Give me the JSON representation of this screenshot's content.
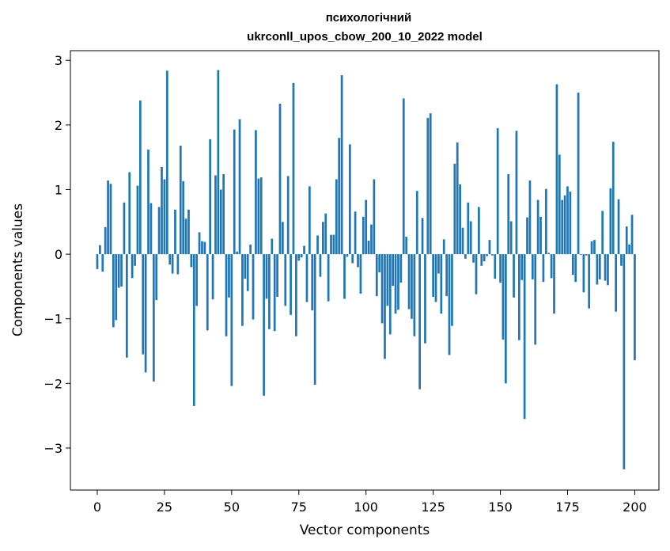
{
  "chart_data": {
    "type": "bar",
    "title": "психологічний",
    "subtitle": "ukrconll_upos_cbow_200_10_2022 model",
    "xlabel": "Vector components",
    "ylabel": "Components values",
    "xlim": [
      -10,
      209
    ],
    "ylim": [
      -3.65,
      3.15
    ],
    "xticks": [
      0,
      25,
      50,
      75,
      100,
      125,
      150,
      175,
      200
    ],
    "yticks": [
      -3,
      -2,
      -1,
      0,
      1,
      2,
      3
    ],
    "xtick_labels": [
      "0",
      "25",
      "50",
      "75",
      "100",
      "125",
      "150",
      "175",
      "200"
    ],
    "ytick_labels": [
      "−3",
      "−2",
      "−1",
      "0",
      "1",
      "2",
      "3"
    ],
    "grid": false,
    "bar_color": "#1f77b4",
    "values": [
      -0.23,
      0.14,
      -0.27,
      0.42,
      1.14,
      1.09,
      -1.13,
      -1.02,
      -0.52,
      -0.5,
      0.8,
      -1.6,
      1.27,
      -0.37,
      -0.18,
      1.06,
      2.38,
      -1.55,
      -1.83,
      1.62,
      0.79,
      -1.97,
      -0.71,
      0.73,
      1.35,
      1.16,
      2.84,
      -0.16,
      -0.3,
      0.69,
      -0.31,
      1.68,
      1.13,
      0.55,
      0.69,
      -0.2,
      -2.35,
      -0.8,
      0.34,
      0.2,
      0.19,
      -1.18,
      1.78,
      -0.7,
      1.22,
      2.85,
      1.0,
      1.24,
      -1.27,
      -0.67,
      -2.04,
      1.93,
      0.04,
      2.09,
      -1.11,
      -0.38,
      -0.57,
      0.15,
      -1.01,
      1.92,
      1.17,
      1.19,
      -2.19,
      -0.69,
      -1.16,
      0.24,
      -1.19,
      -0.66,
      2.33,
      0.5,
      -0.8,
      1.21,
      -0.94,
      2.65,
      -1.27,
      -0.1,
      -0.05,
      0.13,
      -0.74,
      1.05,
      -0.87,
      -2.02,
      0.29,
      -0.35,
      0.5,
      0.63,
      -0.73,
      0.3,
      0.3,
      1.16,
      1.8,
      2.77,
      -0.69,
      -0.04,
      1.7,
      -0.14,
      0.66,
      -0.2,
      -0.61,
      0.58,
      0.84,
      0.21,
      0.46,
      1.16,
      -0.65,
      -0.28,
      -1.07,
      -1.62,
      -0.8,
      -1.24,
      -0.49,
      -0.92,
      -0.86,
      -0.44,
      2.41,
      0.27,
      -0.85,
      -1.0,
      -1.27,
      0.98,
      -2.09,
      0.56,
      -1.38,
      2.11,
      2.18,
      -0.66,
      -0.74,
      -0.3,
      -0.92,
      0.23,
      -0.65,
      -1.56,
      -1.11,
      1.4,
      1.73,
      1.08,
      0.41,
      -0.07,
      0.8,
      0.51,
      -0.13,
      -0.62,
      0.73,
      -0.18,
      -0.11,
      -0.03,
      0.22,
      -0.02,
      -0.38,
      1.95,
      -0.44,
      -1.32,
      -2.0,
      1.24,
      0.51,
      -0.67,
      1.91,
      -1.33,
      -0.4,
      -2.55,
      0.57,
      1.14,
      -0.39,
      -1.4,
      0.84,
      0.58,
      -0.43,
      1.01,
      0.02,
      -0.37,
      -0.92,
      2.63,
      1.54,
      0.84,
      0.91,
      1.05,
      0.97,
      -0.32,
      -0.43,
      2.5,
      -0.01,
      -0.59,
      -0.02,
      -0.84,
      0.2,
      0.22,
      -0.47,
      -0.39,
      0.67,
      -0.41,
      -0.48,
      1.02,
      1.74,
      -0.89,
      0.85,
      -0.18,
      -3.33,
      0.43,
      0.15,
      0.61,
      -1.64
    ]
  }
}
